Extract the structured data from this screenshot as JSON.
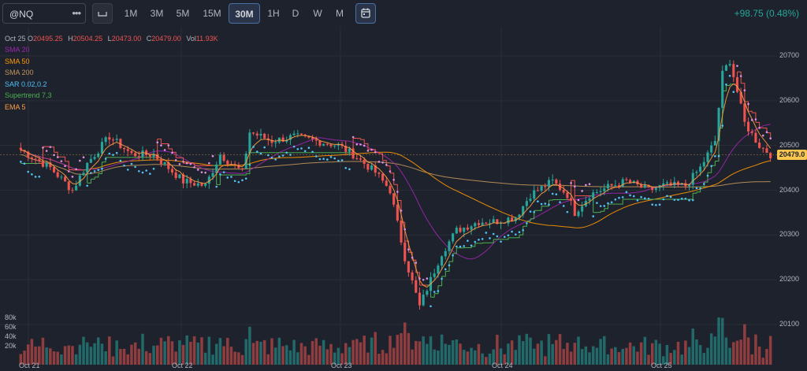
{
  "symbol": "@NQ",
  "symbol_menu": "•••",
  "timeframes": [
    "1M",
    "3M",
    "5M",
    "15M",
    "30M",
    "1H",
    "D",
    "W",
    "M"
  ],
  "active_timeframe": "30M",
  "change_text": "+98.75 (0.48%)",
  "ohlc": {
    "date": "Oct 25",
    "o_label": "O",
    "o": "20495.25",
    "h_label": "H",
    "h": "20504.25",
    "l_label": "L",
    "l": "20473.00",
    "c_label": "C",
    "c": "20479.00",
    "vol_label": "Vol",
    "vol": "11.93K"
  },
  "indicators": [
    {
      "label": "SMA 20",
      "color": "#9c27b0"
    },
    {
      "label": "SMA 50",
      "color": "#ff9800"
    },
    {
      "label": "SMA 200",
      "color": "#c2955a"
    },
    {
      "label": "SAR 0.02,0.2",
      "color": "#4fc3f7"
    },
    {
      "label": "Supertrend 7,3",
      "color": "#4caf50"
    },
    {
      "label": "EMA 5",
      "color": "#ff9f43"
    }
  ],
  "price_axis": [
    "20700",
    "20600",
    "20500",
    "20400",
    "20300",
    "20200",
    "20100"
  ],
  "last_price": "20479.0",
  "volume_axis": [
    "80k",
    "60k",
    "40k",
    "20k"
  ],
  "date_axis": [
    "Oct 21",
    "Oct 22",
    "Oct 23",
    "Oct 24",
    "Oct 25"
  ],
  "colors": {
    "up": "#26a69a",
    "down": "#ef5350",
    "background": "#1e222d",
    "sar": "#4fc3f7",
    "sar_down": "#e08fe6",
    "supertrend_up": "#4caf50",
    "supertrend_down": "#ef5350"
  },
  "chart_data": {
    "type": "candlestick",
    "y_range": [
      20070,
      20730
    ],
    "checkpoints": [
      [
        0,
        20490
      ],
      [
        8,
        20450
      ],
      [
        14,
        20400
      ],
      [
        18,
        20460
      ],
      [
        24,
        20520
      ],
      [
        30,
        20480
      ],
      [
        36,
        20480
      ],
      [
        44,
        20420
      ],
      [
        50,
        20410
      ],
      [
        54,
        20480
      ],
      [
        60,
        20440
      ],
      [
        62,
        20530
      ],
      [
        68,
        20510
      ],
      [
        74,
        20520
      ],
      [
        80,
        20510
      ],
      [
        86,
        20500
      ],
      [
        90,
        20480
      ],
      [
        96,
        20440
      ],
      [
        100,
        20400
      ],
      [
        104,
        20250
      ],
      [
        108,
        20140
      ],
      [
        110,
        20180
      ],
      [
        114,
        20260
      ],
      [
        118,
        20310
      ],
      [
        124,
        20330
      ],
      [
        128,
        20330
      ],
      [
        134,
        20340
      ],
      [
        138,
        20390
      ],
      [
        144,
        20420
      ],
      [
        148,
        20390
      ],
      [
        150,
        20350
      ],
      [
        154,
        20390
      ],
      [
        160,
        20410
      ],
      [
        164,
        20420
      ],
      [
        170,
        20400
      ],
      [
        174,
        20410
      ],
      [
        180,
        20410
      ],
      [
        184,
        20450
      ],
      [
        188,
        20510
      ],
      [
        190,
        20660
      ],
      [
        192,
        20690
      ],
      [
        196,
        20550
      ],
      [
        200,
        20500
      ],
      [
        203,
        20480
      ]
    ],
    "candle_count": 204
  }
}
